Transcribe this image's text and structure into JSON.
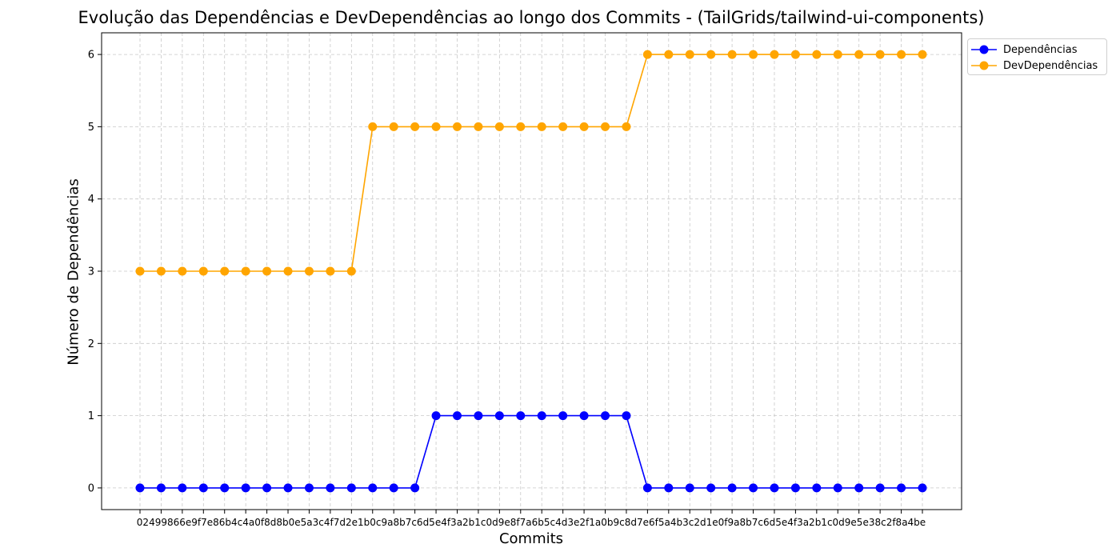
{
  "chart_data": {
    "type": "line",
    "title": "Evolução das Dependências e DevDependências ao longo dos Commits - (TailGrids/tailwind-ui-components)",
    "xlabel": "Commits",
    "ylabel": "Número de Dependências",
    "x_count": 38,
    "x_tick_labels": [],
    "x_tick_labels_note": "",
    "y_ticks": [
      0,
      1,
      2,
      3,
      4,
      5,
      6
    ],
    "ylim": [
      -0.3,
      6.3
    ],
    "grid": true,
    "legend_position": "upper-right-outside",
    "series": [
      {
        "name": "Dependências",
        "color": "#0000ff",
        "values": [
          0,
          0,
          0,
          0,
          0,
          0,
          0,
          0,
          0,
          0,
          0,
          0,
          0,
          0,
          1,
          1,
          1,
          1,
          1,
          1,
          1,
          1,
          1,
          1,
          0,
          0,
          0,
          0,
          0,
          0,
          0,
          0,
          0,
          0,
          0,
          0,
          0,
          0
        ]
      },
      {
        "name": "DevDependências",
        "color": "#ffa500",
        "values": [
          3,
          3,
          3,
          3,
          3,
          3,
          3,
          3,
          3,
          3,
          3,
          5,
          5,
          5,
          5,
          5,
          5,
          5,
          5,
          5,
          5,
          5,
          5,
          5,
          6,
          6,
          6,
          6,
          6,
          6,
          6,
          6,
          6,
          6,
          6,
          6,
          6,
          6
        ]
      }
    ]
  },
  "x_tick_text_visible": "02499866e9f7e86b4c4a0f8d8b0e5a3c4f7d2e1b0c9a8b7c6d5e4f3a2b1c0d9e8f7a6b5c4d3e2f1a0b9c8d7e6f5a4b3c2d1e0f9a8b7c6d5e4f3a2b1c0d9e5e38c2f8a4be"
}
